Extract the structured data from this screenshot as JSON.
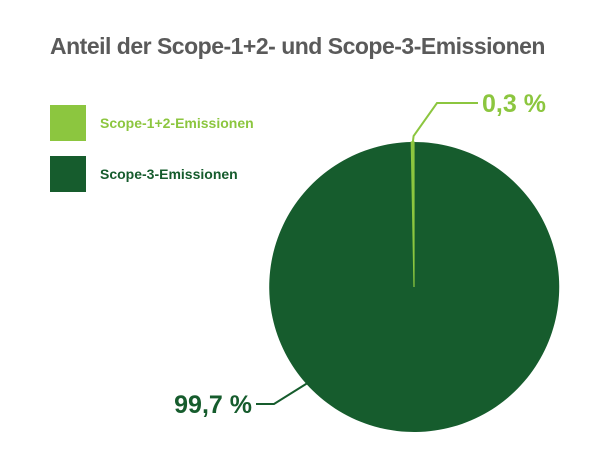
{
  "colors": {
    "scope12": "#8cc63f",
    "scope3": "#165c2d",
    "title": "#5a5a5a"
  },
  "chart_data": {
    "type": "pie",
    "title": "Anteil der Scope-1+2- und Scope-3-Emissionen",
    "legend_position": "top-left",
    "slices": [
      {
        "label": "Scope-1+2-Emissionen",
        "value": 0.3,
        "display": "0,3 %",
        "color": "#8cc63f"
      },
      {
        "label": "Scope-3-Emissionen",
        "value": 99.7,
        "display": "99,7 %",
        "color": "#165c2d"
      }
    ]
  }
}
